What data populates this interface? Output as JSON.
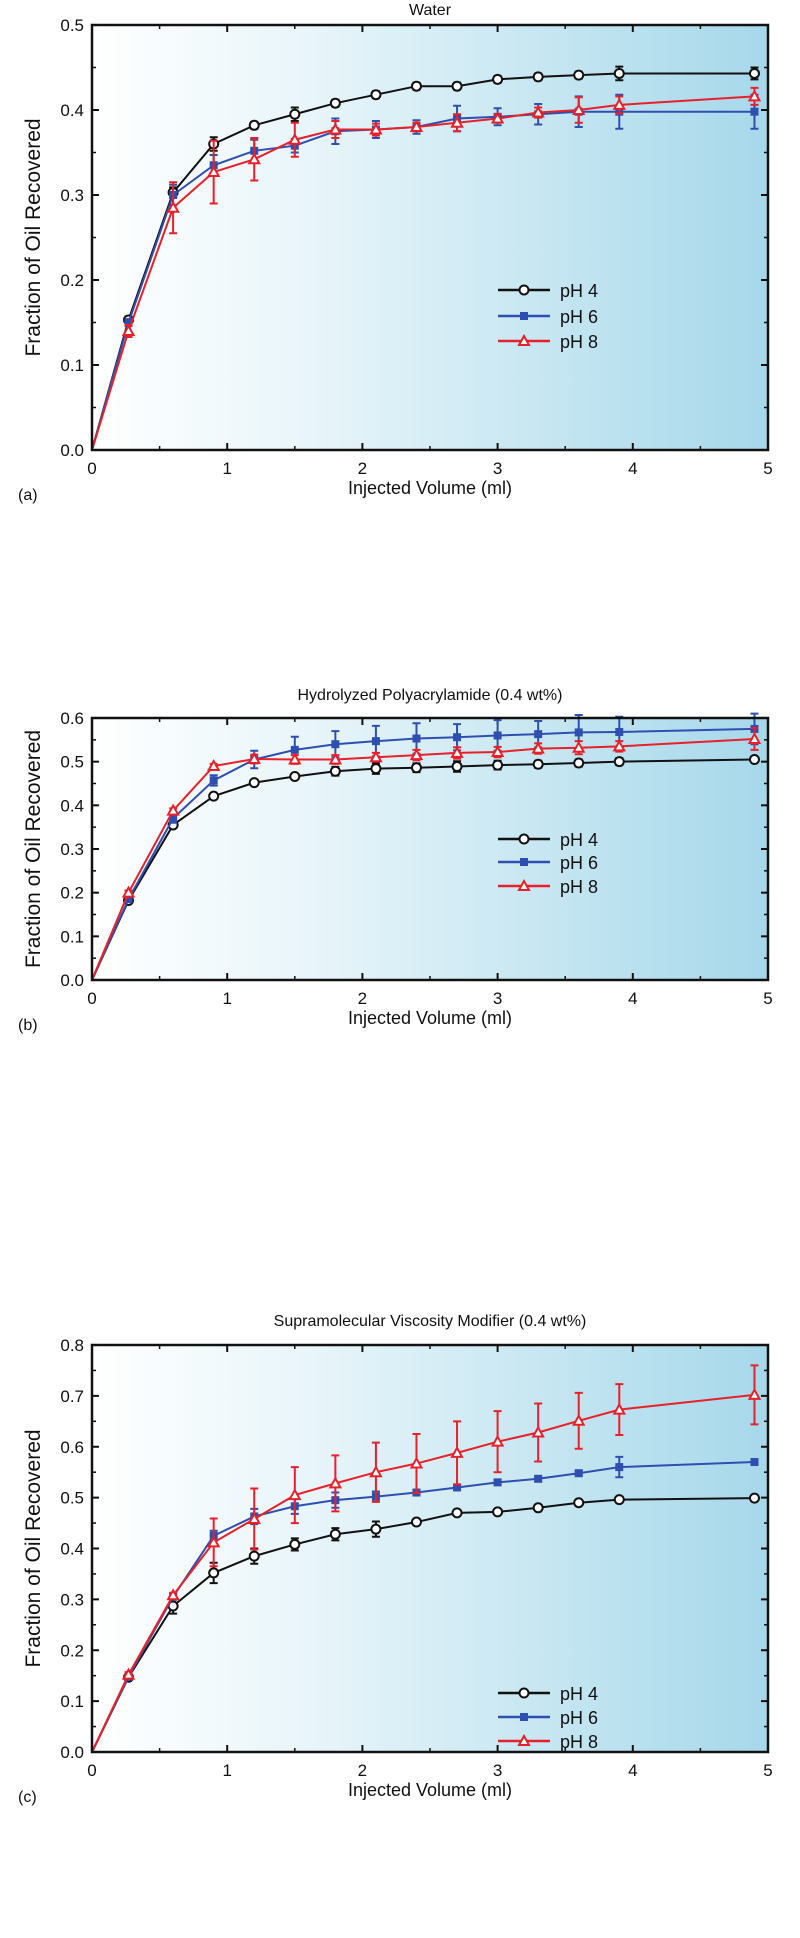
{
  "colors": {
    "pH4": "#111111",
    "pH6": "#2f4fb0",
    "pH8": "#e8202a",
    "bg_start": "#ffffff",
    "bg_end": "#a6d8ea"
  },
  "chart_data": [
    {
      "type": "line",
      "panel_label": "(a)",
      "title": "Water",
      "xlabel": "Injected Volume (ml)",
      "ylabel": "Fraction of Oil Recovered",
      "xlim": [
        0,
        5
      ],
      "ylim": [
        0,
        0.5
      ],
      "xticks": [
        "0",
        "1",
        "2",
        "3",
        "4",
        "5"
      ],
      "yticks": [
        "0.0",
        "0.1",
        "0.2",
        "0.3",
        "0.4",
        "0.5"
      ],
      "legend_position": "center-right",
      "x": [
        0,
        0.27,
        0.6,
        0.9,
        1.2,
        1.5,
        1.8,
        2.1,
        2.4,
        2.7,
        3.0,
        3.3,
        3.6,
        3.9,
        4.9
      ],
      "series": [
        {
          "name": "pH 4",
          "marker": "open-circle",
          "values": [
            0,
            0.153,
            0.303,
            0.36,
            0.382,
            0.395,
            0.408,
            0.418,
            0.428,
            0.428,
            0.436,
            0.439,
            0.441,
            0.443,
            0.443
          ],
          "errors": [
            0,
            0.004,
            0.006,
            0.008,
            0.004,
            0.008,
            0.004,
            0.004,
            0.004,
            0.004,
            0.004,
            0.004,
            0.004,
            0.008,
            0.007
          ]
        },
        {
          "name": "pH 6",
          "marker": "filled-square",
          "values": [
            0,
            0.15,
            0.3,
            0.335,
            0.352,
            0.358,
            0.375,
            0.377,
            0.38,
            0.39,
            0.392,
            0.395,
            0.398,
            0.398,
            0.398
          ],
          "errors": [
            0,
            0.004,
            0.012,
            0.012,
            0.013,
            0.008,
            0.015,
            0.01,
            0.008,
            0.015,
            0.01,
            0.012,
            0.018,
            0.02,
            0.02
          ]
        },
        {
          "name": "pH 8",
          "marker": "open-triangle",
          "values": [
            0,
            0.14,
            0.285,
            0.327,
            0.342,
            0.365,
            0.377,
            0.377,
            0.38,
            0.385,
            0.39,
            0.397,
            0.4,
            0.406,
            0.416
          ],
          "errors": [
            0,
            0.007,
            0.03,
            0.037,
            0.025,
            0.02,
            0.01,
            0.007,
            0.005,
            0.01,
            0.005,
            0.006,
            0.015,
            0.01,
            0.01
          ]
        }
      ]
    },
    {
      "type": "line",
      "panel_label": "(b)",
      "title": "Hydrolyzed Polyacrylamide  (0.4 wt%)",
      "xlabel": "Injected Volume (ml)",
      "ylabel": "Fraction of Oil Recovered",
      "xlim": [
        0,
        5
      ],
      "ylim": [
        0,
        0.6
      ],
      "xticks": [
        "0",
        "1",
        "2",
        "3",
        "4",
        "5"
      ],
      "yticks": [
        "0.0",
        "0.1",
        "0.2",
        "0.3",
        "0.4",
        "0.5",
        "0.6"
      ],
      "legend_position": "center-right",
      "x": [
        0,
        0.27,
        0.6,
        0.9,
        1.2,
        1.5,
        1.8,
        2.1,
        2.4,
        2.7,
        3.0,
        3.3,
        3.6,
        3.9,
        4.9
      ],
      "series": [
        {
          "name": "pH 4",
          "marker": "open-circle",
          "values": [
            0,
            0.182,
            0.355,
            0.421,
            0.452,
            0.466,
            0.478,
            0.484,
            0.486,
            0.489,
            0.492,
            0.494,
            0.497,
            0.5,
            0.505
          ],
          "errors": [
            0,
            0.005,
            0.005,
            0.005,
            0.005,
            0.005,
            0.01,
            0.012,
            0.01,
            0.012,
            0.01,
            0.008,
            0.008,
            0.008,
            0.005
          ]
        },
        {
          "name": "pH 6",
          "marker": "filled-square",
          "values": [
            0,
            0.185,
            0.37,
            0.457,
            0.505,
            0.527,
            0.54,
            0.547,
            0.553,
            0.556,
            0.56,
            0.563,
            0.567,
            0.568,
            0.575
          ],
          "errors": [
            0,
            0.005,
            0.01,
            0.012,
            0.02,
            0.03,
            0.03,
            0.035,
            0.035,
            0.03,
            0.035,
            0.03,
            0.04,
            0.035,
            0.035
          ]
        },
        {
          "name": "pH 8",
          "marker": "open-triangle",
          "values": [
            0,
            0.2,
            0.388,
            0.49,
            0.506,
            0.505,
            0.505,
            0.51,
            0.515,
            0.52,
            0.522,
            0.53,
            0.532,
            0.535,
            0.552
          ],
          "errors": [
            0,
            0.005,
            0.005,
            0.005,
            0.01,
            0.01,
            0.01,
            0.01,
            0.012,
            0.013,
            0.012,
            0.012,
            0.015,
            0.012,
            0.025
          ]
        }
      ]
    },
    {
      "type": "line",
      "panel_label": "(c)",
      "title": "Supramolecular Viscosity Modifier (0.4 wt%)",
      "xlabel": "Injected Volume (ml)",
      "ylabel": "Fraction of Oil Recovered",
      "xlim": [
        0,
        5
      ],
      "ylim": [
        0,
        0.8
      ],
      "xticks": [
        "0",
        "1",
        "2",
        "3",
        "4",
        "5"
      ],
      "yticks": [
        "0.0",
        "0.1",
        "0.2",
        "0.3",
        "0.4",
        "0.5",
        "0.6",
        "0.7",
        "0.8"
      ],
      "legend_position": "center-right",
      "x": [
        0,
        0.27,
        0.6,
        0.9,
        1.2,
        1.5,
        1.8,
        2.1,
        2.4,
        2.7,
        3.0,
        3.3,
        3.6,
        3.9,
        4.9
      ],
      "series": [
        {
          "name": "pH 4",
          "marker": "open-circle",
          "values": [
            0,
            0.147,
            0.287,
            0.352,
            0.385,
            0.408,
            0.428,
            0.438,
            0.452,
            0.47,
            0.472,
            0.48,
            0.49,
            0.496,
            0.499
          ],
          "errors": [
            0,
            0.005,
            0.015,
            0.02,
            0.015,
            0.012,
            0.012,
            0.015,
            0.005,
            0.005,
            0.005,
            0.005,
            0.005,
            0.005,
            0.005
          ]
        },
        {
          "name": "pH 6",
          "marker": "filled-square",
          "values": [
            0,
            0.148,
            0.305,
            0.425,
            0.463,
            0.483,
            0.495,
            0.502,
            0.51,
            0.52,
            0.53,
            0.537,
            0.548,
            0.56,
            0.57
          ],
          "errors": [
            0,
            0.005,
            0.005,
            0.01,
            0.015,
            0.015,
            0.015,
            0.01,
            0.005,
            0.005,
            0.005,
            0.005,
            0.005,
            0.02,
            0.005
          ]
        },
        {
          "name": "pH 8",
          "marker": "open-triangle",
          "values": [
            0,
            0.152,
            0.308,
            0.412,
            0.458,
            0.505,
            0.528,
            0.55,
            0.567,
            0.588,
            0.61,
            0.628,
            0.651,
            0.673,
            0.702
          ],
          "errors": [
            0,
            0.005,
            0.005,
            0.047,
            0.06,
            0.055,
            0.055,
            0.058,
            0.058,
            0.062,
            0.06,
            0.057,
            0.055,
            0.05,
            0.058
          ]
        }
      ]
    }
  ]
}
